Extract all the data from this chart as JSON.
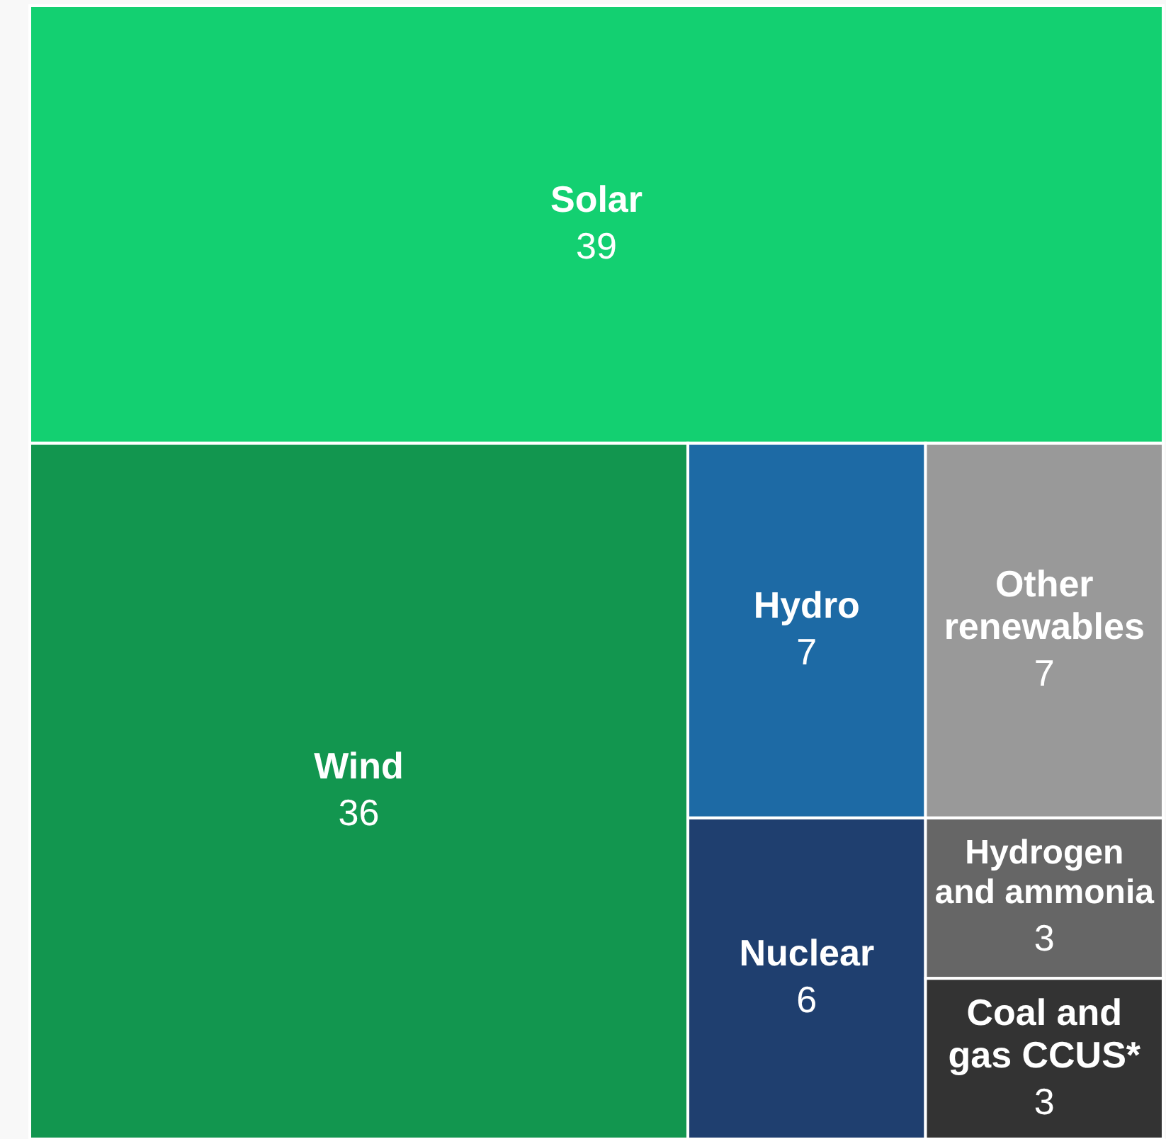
{
  "chart_data": {
    "type": "other",
    "categories": [
      "Solar",
      "Wind",
      "Hydro",
      "Other renewables",
      "Nuclear",
      "Hydrogen and ammonia",
      "Coal and gas CCUS*"
    ],
    "values": [
      39,
      36,
      7,
      7,
      6,
      3,
      3
    ],
    "colors": [
      "#13d071",
      "#12964f",
      "#1d6aa5",
      "#999999",
      "#1f3f6f",
      "#666666",
      "#333333"
    ],
    "data_labels": true
  }
}
